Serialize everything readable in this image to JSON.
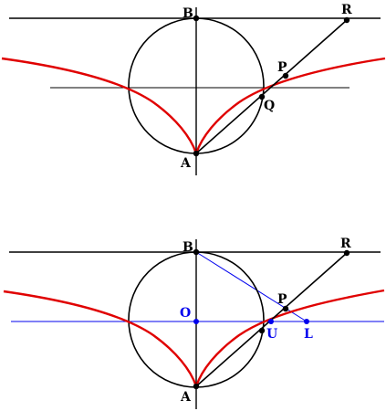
{
  "colors": {
    "line": "#000000",
    "curve": "#e00000",
    "aux": "#0000ee",
    "background": "#ffffff"
  },
  "figure_top": {
    "labels": {
      "B": "B",
      "R": "R",
      "P": "P",
      "Q": "Q",
      "A": "A"
    }
  },
  "figure_bottom": {
    "labels": {
      "B": "B",
      "R": "R",
      "P": "P",
      "O": "O",
      "U": "U",
      "L": "L",
      "A": "A"
    }
  }
}
